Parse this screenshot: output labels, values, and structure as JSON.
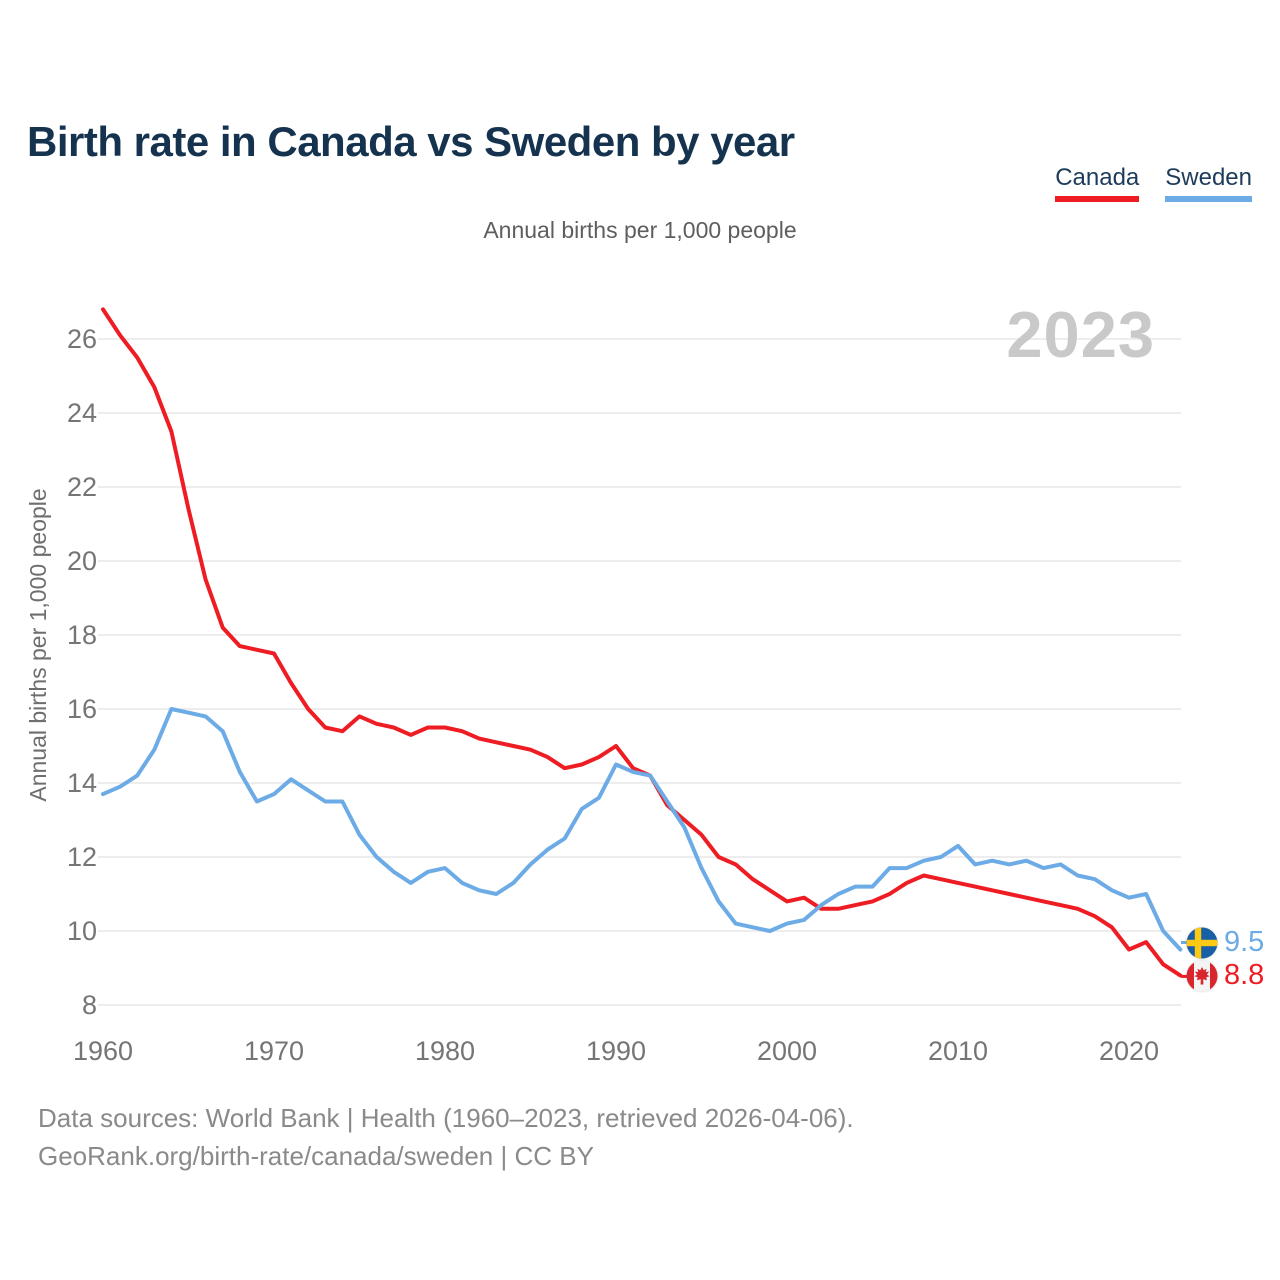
{
  "header": {
    "title": "Birth rate in Canada vs Sweden by year"
  },
  "subtitle": "Annual births per 1,000 people",
  "watermark": "2023",
  "legend": [
    {
      "label": "Canada",
      "color": "#ee1c23"
    },
    {
      "label": "Sweden",
      "color": "#6cabe5"
    }
  ],
  "end_labels": [
    {
      "series": "Sweden",
      "value": "9.5",
      "flag": "sweden-flag"
    },
    {
      "series": "Canada",
      "value": "8.8",
      "flag": "canada-flag"
    }
  ],
  "footer": {
    "line1": "Data sources: World Bank | Health (1960–2023, retrieved 2026-04-06).",
    "line2": "GeoRank.org/birth-rate/canada/sweden | CC BY"
  },
  "flag_colors": {
    "sweden_blue": "#195fa5",
    "sweden_yellow": "#fdc913",
    "canada_red": "#d9252d",
    "canada_white": "#f4f4f4"
  },
  "chart_data": {
    "type": "line",
    "title": "Birth rate in Canada vs Sweden by year",
    "xlabel": "",
    "ylabel": "Annual births per 1,000 people",
    "grid": "horizontal",
    "legend_position": "top-right",
    "xticks": [
      1960,
      1970,
      1980,
      1990,
      2000,
      2010,
      2020
    ],
    "yticks": [
      8,
      10,
      12,
      14,
      16,
      18,
      20,
      22,
      24,
      26
    ],
    "ylim": [
      8,
      27
    ],
    "x": [
      1960,
      1961,
      1962,
      1963,
      1964,
      1965,
      1966,
      1967,
      1968,
      1969,
      1970,
      1971,
      1972,
      1973,
      1974,
      1975,
      1976,
      1977,
      1978,
      1979,
      1980,
      1981,
      1982,
      1983,
      1984,
      1985,
      1986,
      1987,
      1988,
      1989,
      1990,
      1991,
      1992,
      1993,
      1994,
      1995,
      1996,
      1997,
      1998,
      1999,
      2000,
      2001,
      2002,
      2003,
      2004,
      2005,
      2006,
      2007,
      2008,
      2009,
      2010,
      2011,
      2012,
      2013,
      2014,
      2015,
      2016,
      2017,
      2018,
      2019,
      2020,
      2021,
      2022,
      2023
    ],
    "series": [
      {
        "name": "Canada",
        "color": "#ee1c23",
        "values": [
          26.8,
          26.1,
          25.5,
          24.7,
          23.5,
          21.4,
          19.5,
          18.2,
          17.7,
          17.6,
          17.5,
          16.7,
          16.0,
          15.5,
          15.4,
          15.8,
          15.6,
          15.5,
          15.3,
          15.5,
          15.5,
          15.4,
          15.2,
          15.1,
          15.0,
          14.9,
          14.7,
          14.4,
          14.5,
          14.7,
          15.0,
          14.4,
          14.2,
          13.4,
          13.0,
          12.6,
          12.0,
          11.8,
          11.4,
          11.1,
          10.8,
          10.9,
          10.6,
          10.6,
          10.7,
          10.8,
          11.0,
          11.3,
          11.5,
          11.4,
          11.3,
          11.2,
          11.1,
          11.0,
          10.9,
          10.8,
          10.7,
          10.6,
          10.4,
          10.1,
          9.5,
          9.7,
          9.1,
          8.8
        ]
      },
      {
        "name": "Sweden",
        "color": "#6cabe5",
        "values": [
          13.7,
          13.9,
          14.2,
          14.9,
          16.0,
          15.9,
          15.8,
          15.4,
          14.3,
          13.5,
          13.7,
          14.1,
          13.8,
          13.5,
          13.5,
          12.6,
          12.0,
          11.6,
          11.3,
          11.6,
          11.7,
          11.3,
          11.1,
          11.0,
          11.3,
          11.8,
          12.2,
          12.5,
          13.3,
          13.6,
          14.5,
          14.3,
          14.2,
          13.5,
          12.8,
          11.7,
          10.8,
          10.2,
          10.1,
          10.0,
          10.2,
          10.3,
          10.7,
          11.0,
          11.2,
          11.2,
          11.7,
          11.7,
          11.9,
          12.0,
          12.3,
          11.8,
          11.9,
          11.8,
          11.9,
          11.7,
          11.8,
          11.5,
          11.4,
          11.1,
          10.9,
          11.0,
          10.0,
          9.5
        ]
      }
    ]
  }
}
